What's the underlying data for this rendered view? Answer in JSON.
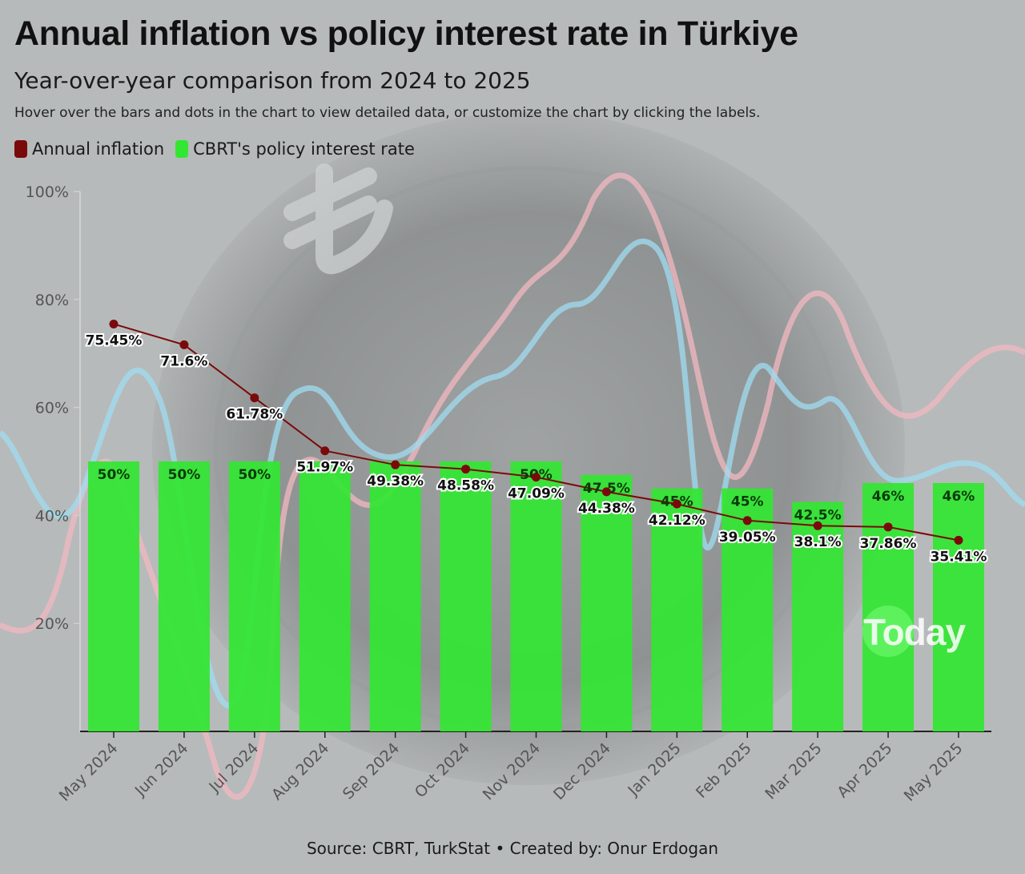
{
  "header": {
    "title": "Annual inflation vs policy interest rate in Türkiye",
    "subtitle": "Year-over-year comparison from 2024 to 2025",
    "hint": "Hover over the bars and dots in the chart to view detailed data, or customize the chart by clicking the labels."
  },
  "legend": {
    "inflation_label": "Annual inflation",
    "rate_label": "CBRT's policy interest rate"
  },
  "colors": {
    "inflation": "#7a0a0a",
    "rate": "#33e633",
    "axis": "#222222",
    "tick_text": "#555555"
  },
  "footer": {
    "source": "Source: CBRT, TurkStat • Created by: Onur Erdogan"
  },
  "watermark": {
    "text": "Today"
  },
  "chart_data": {
    "type": "bar",
    "title": "Annual inflation vs policy interest rate in Türkiye",
    "subtitle": "Year-over-year comparison from 2024 to 2025",
    "xlabel": "",
    "ylabel": "",
    "ylim": [
      0,
      100
    ],
    "yticks": [
      20,
      40,
      60,
      80,
      100
    ],
    "ytick_labels": [
      "20%",
      "40%",
      "60%",
      "80%",
      "100%"
    ],
    "grid": false,
    "legend_position": "top-left",
    "categories": [
      "May 2024",
      "Jun 2024",
      "Jul 2024",
      "Aug 2024",
      "Sep 2024",
      "Oct 2024",
      "Nov 2024",
      "Dec 2024",
      "Jan 2025",
      "Feb 2025",
      "Mar 2025",
      "Apr 2025",
      "May 2025"
    ],
    "series": [
      {
        "name": "CBRT's policy interest rate",
        "kind": "bar",
        "values": [
          50,
          50,
          50,
          50,
          50,
          50,
          50,
          47.5,
          45,
          45,
          42.5,
          46,
          46
        ],
        "labels": [
          "50%",
          "50%",
          "50%",
          "",
          "",
          "",
          "50%",
          "47.5%",
          "45%",
          "45%",
          "42.5%",
          "46%",
          "46%"
        ]
      },
      {
        "name": "Annual inflation",
        "kind": "line",
        "values": [
          75.45,
          71.6,
          61.78,
          51.97,
          49.38,
          48.58,
          47.09,
          44.38,
          42.12,
          39.05,
          38.1,
          37.86,
          35.41
        ],
        "labels": [
          "75.45%",
          "71.6%",
          "61.78%",
          "51.97%",
          "49.38%",
          "48.58%",
          "47.09%",
          "44.38%",
          "42.12%",
          "39.05%",
          "38.1%",
          "37.86%",
          "35.41%"
        ]
      }
    ]
  }
}
